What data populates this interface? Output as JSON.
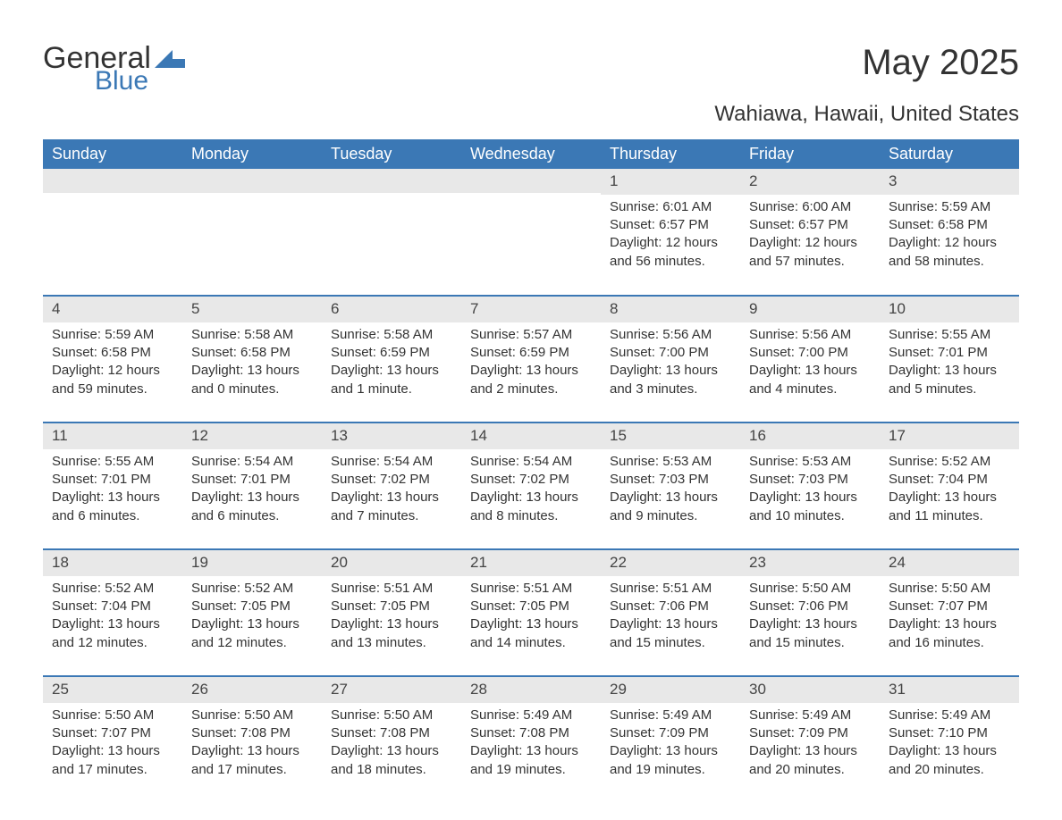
{
  "logo": {
    "general": "General",
    "blue": "Blue"
  },
  "title": "May 2025",
  "subtitle": "Wahiawa, Hawaii, United States",
  "colors": {
    "header_bg": "#3b78b5",
    "header_text": "#ffffff",
    "daynum_bg": "#e8e8e8",
    "text": "#333333",
    "row_divider": "#3b78b5",
    "page_bg": "#ffffff"
  },
  "typography": {
    "title_fontsize": 40,
    "subtitle_fontsize": 24,
    "header_fontsize": 18,
    "body_fontsize": 15
  },
  "weekdays": [
    "Sunday",
    "Monday",
    "Tuesday",
    "Wednesday",
    "Thursday",
    "Friday",
    "Saturday"
  ],
  "weeks": [
    [
      null,
      null,
      null,
      null,
      {
        "n": "1",
        "sunrise": "6:01 AM",
        "sunset": "6:57 PM",
        "daylight": "12 hours and 56 minutes."
      },
      {
        "n": "2",
        "sunrise": "6:00 AM",
        "sunset": "6:57 PM",
        "daylight": "12 hours and 57 minutes."
      },
      {
        "n": "3",
        "sunrise": "5:59 AM",
        "sunset": "6:58 PM",
        "daylight": "12 hours and 58 minutes."
      }
    ],
    [
      {
        "n": "4",
        "sunrise": "5:59 AM",
        "sunset": "6:58 PM",
        "daylight": "12 hours and 59 minutes."
      },
      {
        "n": "5",
        "sunrise": "5:58 AM",
        "sunset": "6:58 PM",
        "daylight": "13 hours and 0 minutes."
      },
      {
        "n": "6",
        "sunrise": "5:58 AM",
        "sunset": "6:59 PM",
        "daylight": "13 hours and 1 minute."
      },
      {
        "n": "7",
        "sunrise": "5:57 AM",
        "sunset": "6:59 PM",
        "daylight": "13 hours and 2 minutes."
      },
      {
        "n": "8",
        "sunrise": "5:56 AM",
        "sunset": "7:00 PM",
        "daylight": "13 hours and 3 minutes."
      },
      {
        "n": "9",
        "sunrise": "5:56 AM",
        "sunset": "7:00 PM",
        "daylight": "13 hours and 4 minutes."
      },
      {
        "n": "10",
        "sunrise": "5:55 AM",
        "sunset": "7:01 PM",
        "daylight": "13 hours and 5 minutes."
      }
    ],
    [
      {
        "n": "11",
        "sunrise": "5:55 AM",
        "sunset": "7:01 PM",
        "daylight": "13 hours and 6 minutes."
      },
      {
        "n": "12",
        "sunrise": "5:54 AM",
        "sunset": "7:01 PM",
        "daylight": "13 hours and 6 minutes."
      },
      {
        "n": "13",
        "sunrise": "5:54 AM",
        "sunset": "7:02 PM",
        "daylight": "13 hours and 7 minutes."
      },
      {
        "n": "14",
        "sunrise": "5:54 AM",
        "sunset": "7:02 PM",
        "daylight": "13 hours and 8 minutes."
      },
      {
        "n": "15",
        "sunrise": "5:53 AM",
        "sunset": "7:03 PM",
        "daylight": "13 hours and 9 minutes."
      },
      {
        "n": "16",
        "sunrise": "5:53 AM",
        "sunset": "7:03 PM",
        "daylight": "13 hours and 10 minutes."
      },
      {
        "n": "17",
        "sunrise": "5:52 AM",
        "sunset": "7:04 PM",
        "daylight": "13 hours and 11 minutes."
      }
    ],
    [
      {
        "n": "18",
        "sunrise": "5:52 AM",
        "sunset": "7:04 PM",
        "daylight": "13 hours and 12 minutes."
      },
      {
        "n": "19",
        "sunrise": "5:52 AM",
        "sunset": "7:05 PM",
        "daylight": "13 hours and 12 minutes."
      },
      {
        "n": "20",
        "sunrise": "5:51 AM",
        "sunset": "7:05 PM",
        "daylight": "13 hours and 13 minutes."
      },
      {
        "n": "21",
        "sunrise": "5:51 AM",
        "sunset": "7:05 PM",
        "daylight": "13 hours and 14 minutes."
      },
      {
        "n": "22",
        "sunrise": "5:51 AM",
        "sunset": "7:06 PM",
        "daylight": "13 hours and 15 minutes."
      },
      {
        "n": "23",
        "sunrise": "5:50 AM",
        "sunset": "7:06 PM",
        "daylight": "13 hours and 15 minutes."
      },
      {
        "n": "24",
        "sunrise": "5:50 AM",
        "sunset": "7:07 PM",
        "daylight": "13 hours and 16 minutes."
      }
    ],
    [
      {
        "n": "25",
        "sunrise": "5:50 AM",
        "sunset": "7:07 PM",
        "daylight": "13 hours and 17 minutes."
      },
      {
        "n": "26",
        "sunrise": "5:50 AM",
        "sunset": "7:08 PM",
        "daylight": "13 hours and 17 minutes."
      },
      {
        "n": "27",
        "sunrise": "5:50 AM",
        "sunset": "7:08 PM",
        "daylight": "13 hours and 18 minutes."
      },
      {
        "n": "28",
        "sunrise": "5:49 AM",
        "sunset": "7:08 PM",
        "daylight": "13 hours and 19 minutes."
      },
      {
        "n": "29",
        "sunrise": "5:49 AM",
        "sunset": "7:09 PM",
        "daylight": "13 hours and 19 minutes."
      },
      {
        "n": "30",
        "sunrise": "5:49 AM",
        "sunset": "7:09 PM",
        "daylight": "13 hours and 20 minutes."
      },
      {
        "n": "31",
        "sunrise": "5:49 AM",
        "sunset": "7:10 PM",
        "daylight": "13 hours and 20 minutes."
      }
    ]
  ],
  "labels": {
    "sunrise": "Sunrise:",
    "sunset": "Sunset:",
    "daylight": "Daylight:"
  }
}
